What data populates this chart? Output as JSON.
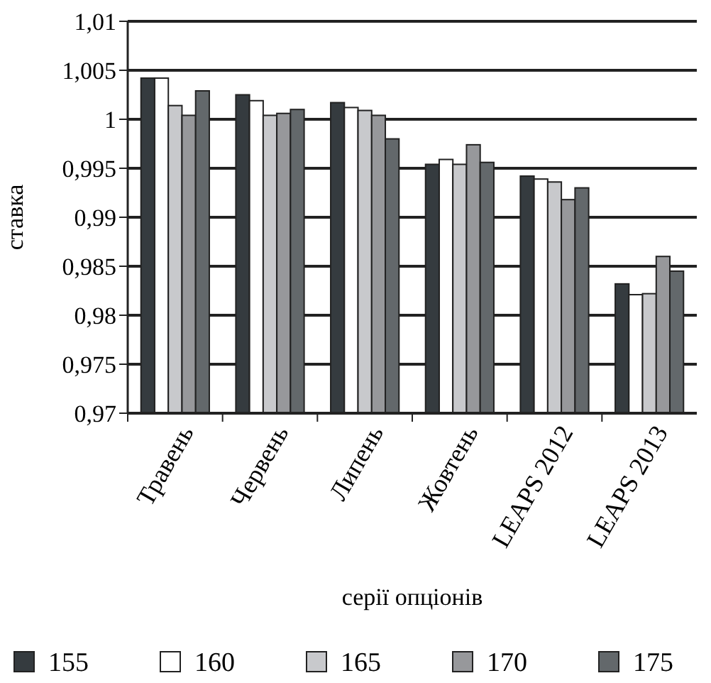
{
  "chart_data": {
    "type": "bar",
    "xlabel": "серії опціонів",
    "ylabel": "ставка",
    "categories": [
      "Травень",
      "Червень",
      "Липень",
      "Жовтень",
      "LEAPS 2012",
      "LEAPS 2013"
    ],
    "series": [
      {
        "name": "155",
        "color": "#353b3f",
        "values": [
          1.0042,
          1.0025,
          1.0017,
          0.9954,
          0.9942,
          0.9832
        ]
      },
      {
        "name": "160",
        "color": "#ffffff",
        "values": [
          1.0042,
          1.0019,
          1.0012,
          0.9959,
          0.9939,
          0.9821
        ]
      },
      {
        "name": "165",
        "color": "#c8c9cc",
        "values": [
          1.0014,
          1.0004,
          1.0009,
          0.9954,
          0.9936,
          0.9822
        ]
      },
      {
        "name": "170",
        "color": "#97989b",
        "values": [
          1.0004,
          1.0006,
          1.0004,
          0.9974,
          0.9918,
          0.986
        ]
      },
      {
        "name": "175",
        "color": "#63686b",
        "values": [
          1.0029,
          1.001,
          0.998,
          0.9956,
          0.993,
          0.9845
        ]
      }
    ],
    "ylim": [
      0.97,
      1.01
    ],
    "yticks": [
      {
        "value": 0.97,
        "label": "0,97"
      },
      {
        "value": 0.975,
        "label": "0,975"
      },
      {
        "value": 0.98,
        "label": "0,98"
      },
      {
        "value": 0.985,
        "label": "0,985"
      },
      {
        "value": 0.99,
        "label": "0,99"
      },
      {
        "value": 0.995,
        "label": "0,995"
      },
      {
        "value": 1,
        "label": "1"
      },
      {
        "value": 1.005,
        "label": "1,005"
      },
      {
        "value": 1.01,
        "label": "1,01"
      }
    ],
    "grid": "y",
    "legend": "bottom"
  }
}
